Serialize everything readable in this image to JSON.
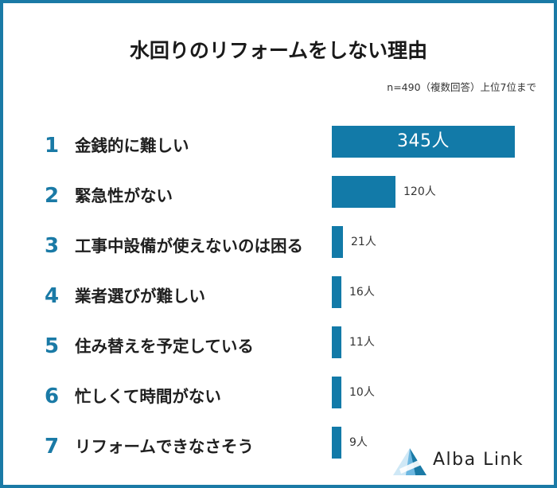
{
  "chart_data": {
    "type": "bar",
    "title": "水回りのリフォームをしない理由",
    "note": "n=490（複数回答）上位7位まで",
    "max_value": 345,
    "categories": [
      {
        "rank": "1",
        "label": "金銭的に難しい",
        "value": 345,
        "value_label": "345人"
      },
      {
        "rank": "2",
        "label": "緊急性がない",
        "value": 120,
        "value_label": "120人"
      },
      {
        "rank": "3",
        "label": "工事中設備が使えないのは困る",
        "value": 21,
        "value_label": "21人"
      },
      {
        "rank": "4",
        "label": "業者選びが難しい",
        "value": 16,
        "value_label": "16人"
      },
      {
        "rank": "5",
        "label": "住み替えを予定している",
        "value": 11,
        "value_label": "11人"
      },
      {
        "rank": "6",
        "label": "忙しくて時間がない",
        "value": 10,
        "value_label": "10人"
      },
      {
        "rank": "7",
        "label": "リフォームできなさそう",
        "value": 9,
        "value_label": "9人"
      }
    ],
    "colors": {
      "bar": "#127aa8",
      "rank": "#1a7aa6",
      "frame": "#1a7aa6"
    }
  },
  "logo": {
    "text": "Alba Link",
    "icon": "alba-link-triangle-icon"
  }
}
